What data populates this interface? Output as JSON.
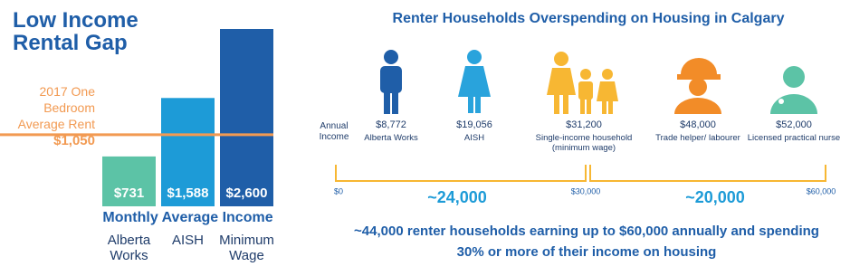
{
  "chart_data": {
    "type": "bar",
    "title": "Low Income Rental Gap",
    "x_label": "Monthly Average Income",
    "categories": [
      "Alberta Works",
      "AISH",
      "Minimum Wage"
    ],
    "values": [
      731,
      1588,
      2600
    ],
    "value_labels": [
      "$731",
      "$1,588",
      "$2,600"
    ],
    "colors": [
      "#5cc3a6",
      "#1d9bd7",
      "#1f5ea8"
    ],
    "ylim": [
      0,
      2600
    ],
    "reference_line": {
      "value": 1050,
      "label": "$1,050",
      "text": "2017 One Bedroom Average Rent",
      "color": "#f29a52"
    }
  },
  "infographic": {
    "title": "Renter Households Overspending on Housing in Calgary",
    "row_label": "Annual Income",
    "items": [
      {
        "amount": "$8,772",
        "label": "Alberta Works"
      },
      {
        "amount": "$19,056",
        "label": "AISH"
      },
      {
        "amount": "$31,200",
        "label": "Single-income household (minimum wage)"
      },
      {
        "amount": "$48,000",
        "label": "Trade helper/ labourer"
      },
      {
        "amount": "$52,000",
        "label": "Licensed practical nurse"
      }
    ],
    "scale_labels": [
      "$0",
      "$30,000",
      "$60,000"
    ],
    "ranges": [
      "~24,000",
      "~20,000"
    ],
    "footer": [
      "~44,000 renter households earning up to $60,000 annually and spending",
      "30% or more of their income on housing"
    ]
  }
}
